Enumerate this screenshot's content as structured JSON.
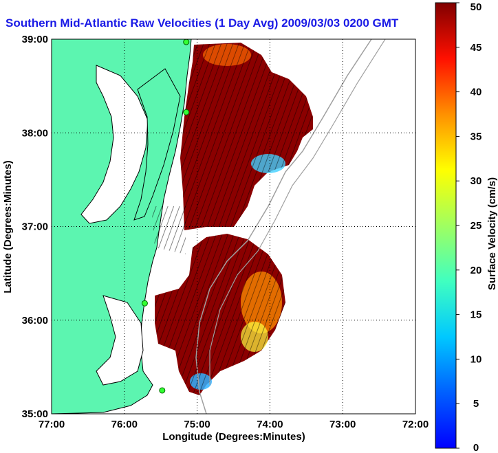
{
  "chart_data": {
    "type": "heatmap",
    "title": "Southern Mid-Atlantic Raw Velocities (1 Day Avg) 2009/03/03 0200 GMT",
    "xlabel": "Longitude (Degrees:Minutes)",
    "ylabel": "Latitude (Degrees:Minutes)",
    "x_ticks": [
      "77:00",
      "76:00",
      "75:00",
      "74:00",
      "73:00",
      "72:00"
    ],
    "y_ticks": [
      "39:00",
      "38:00",
      "37:00",
      "36:00",
      "35:00"
    ],
    "xlim": [
      -77,
      -72
    ],
    "ylim": [
      35,
      39
    ],
    "grid": true,
    "colorbar": {
      "label": "Surface Velocity (cm/s)",
      "min": 0,
      "max": 50,
      "ticks": [
        "0",
        "5",
        "10",
        "15",
        "20",
        "25",
        "30",
        "35",
        "40",
        "45",
        "50"
      ],
      "colormap": "jet"
    },
    "land_color": "#5cf5b0",
    "coverage_color": "#8b0000",
    "hf_radar_sites": [
      {
        "lon": -75.15,
        "lat": 38.97
      },
      {
        "lon": -75.15,
        "lat": 38.22
      },
      {
        "lon": -75.72,
        "lat": 36.18
      },
      {
        "lon": -75.48,
        "lat": 35.25
      }
    ]
  }
}
